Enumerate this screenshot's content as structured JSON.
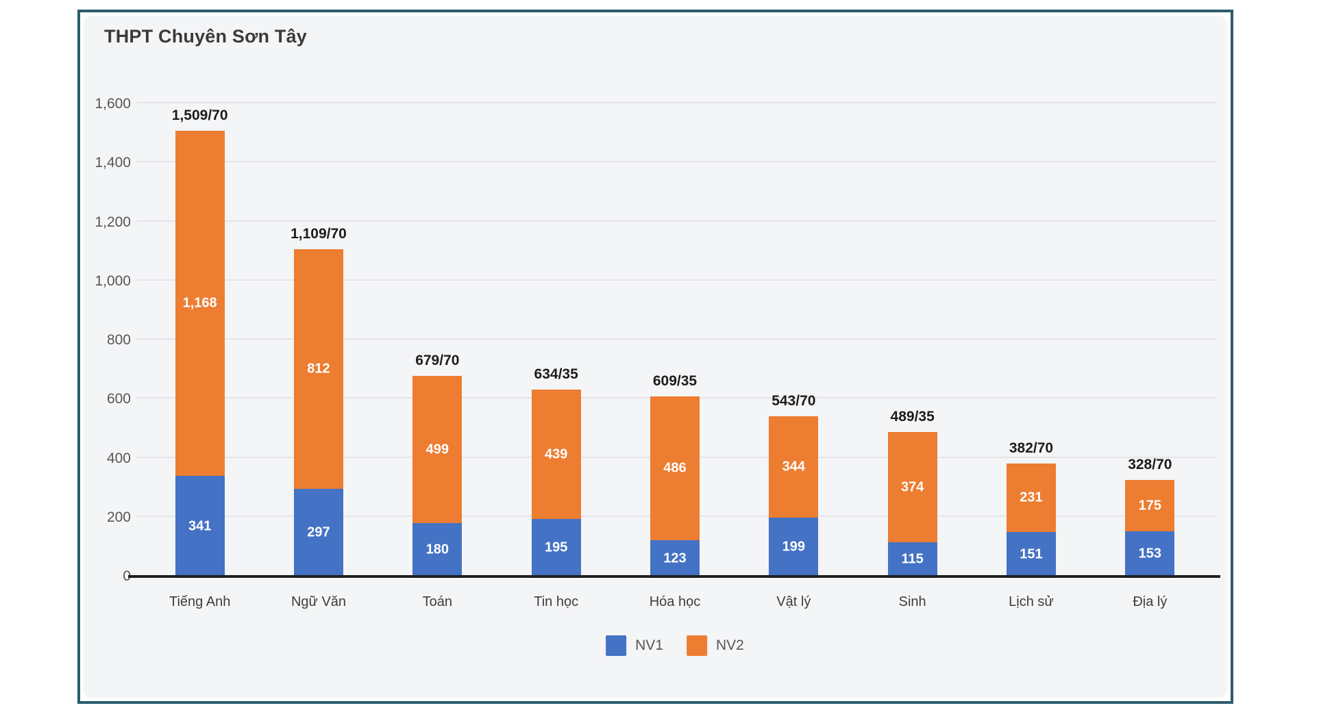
{
  "card": {
    "title": "THPT Chuyên Sơn Tây"
  },
  "chart_data": {
    "type": "bar",
    "stacked": true,
    "title": "THPT Chuyên Sơn Tây",
    "categories": [
      "Tiếng Anh",
      "Ngữ Văn",
      "Toán",
      "Tin học",
      "Hóa học",
      "Vật lý",
      "Sinh",
      "Lịch sử",
      "Địa lý"
    ],
    "series": [
      {
        "name": "NV1",
        "color": "#4472c4",
        "values": [
          341,
          297,
          180,
          195,
          123,
          199,
          115,
          151,
          153
        ],
        "labels": [
          "341",
          "297",
          "180",
          "195",
          "123",
          "199",
          "115",
          "151",
          "153"
        ]
      },
      {
        "name": "NV2",
        "color": "#ed7d31",
        "values": [
          1168,
          812,
          499,
          439,
          486,
          344,
          374,
          231,
          175
        ],
        "labels": [
          "1,168",
          "812",
          "499",
          "439",
          "486",
          "344",
          "374",
          "231",
          "175"
        ]
      }
    ],
    "total_labels": [
      "1,509/70",
      "1,109/70",
      "679/70",
      "634/35",
      "609/35",
      "543/70",
      "489/35",
      "382/70",
      "328/70"
    ],
    "ylim": [
      0,
      1600
    ],
    "yticks": [
      {
        "value": 0,
        "label": "0"
      },
      {
        "value": 200,
        "label": "200"
      },
      {
        "value": 400,
        "label": "400"
      },
      {
        "value": 600,
        "label": "600"
      },
      {
        "value": 800,
        "label": "800"
      },
      {
        "value": 1000,
        "label": "1,000"
      },
      {
        "value": 1200,
        "label": "1,200"
      },
      {
        "value": 1400,
        "label": "1,400"
      },
      {
        "value": 1600,
        "label": "1,600"
      }
    ],
    "grid": true,
    "legend_position": "bottom",
    "colors": {
      "nv1_blue": "#4472c4",
      "nv2_orange": "#ed7d31",
      "panel_background": "#f4f5f7",
      "frame_border": "#2b5c6c",
      "axis": "#1f1f1f",
      "gridline": "#e4e4e8"
    }
  }
}
